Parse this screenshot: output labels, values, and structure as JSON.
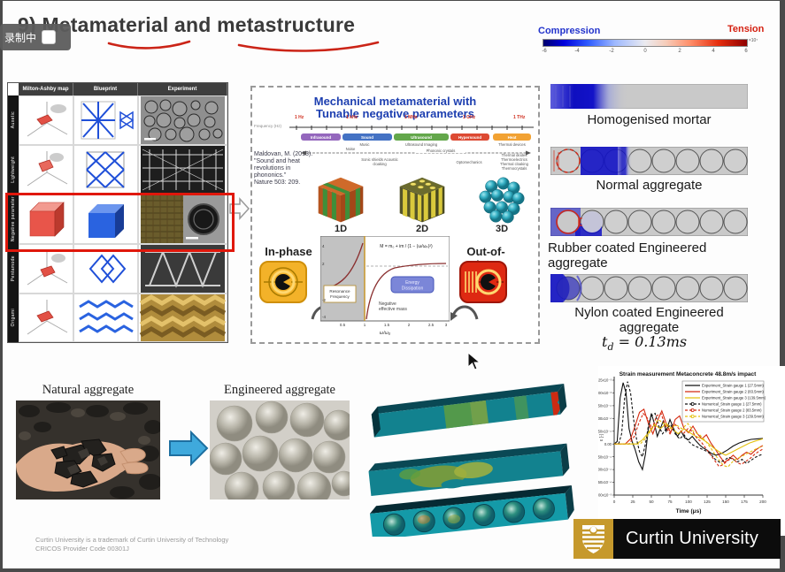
{
  "recording_label": "录制中",
  "title": "9) Metamaterial and metastructure",
  "left_table": {
    "columns": [
      "Milton-Ashby map",
      "Blueprint",
      "Experiment"
    ],
    "rows": [
      "Auxetic",
      "Lightweight",
      "Negative parameter",
      "Pentamode",
      "Origami"
    ],
    "highlighted_row": "Negative parameter"
  },
  "meta_panel": {
    "title1": "Mechanical metamaterial with",
    "title2": "Tunable negative parameters",
    "freq_axis_label": "Frequency (Hz)",
    "freq_markers": [
      "1 Hz",
      "1 kHz",
      "1 MHz",
      "1 GHz",
      "1 THz"
    ],
    "bands": [
      {
        "name": "Infrasound",
        "color": "#9467bd"
      },
      {
        "name": "Sound",
        "color": "#4472c4"
      },
      {
        "name": "Ultrasound",
        "color": "#63a74b"
      },
      {
        "name": "Hypersound",
        "color": "#dd4a33"
      },
      {
        "name": "Heat",
        "color": "#f2a233"
      }
    ],
    "band_notes": [
      "Noise",
      "Music",
      "Ultrasound Imaging",
      "Thermal devices"
    ],
    "app_notes": [
      "Phononic crystals",
      "Sonic shields Acoustic cloaking",
      "Optomechanics",
      "Thermal diodes Thermoelectrics Thermal cloaking Thermocrystals"
    ],
    "citation_lines": [
      "Maldovan, M. (2013).",
      "\"Sound and heat",
      "revolutions in phononics.\"",
      "Nature 503: 209."
    ],
    "dim_labels": [
      "1D",
      "2D",
      "3D"
    ],
    "in_phase": "In-phase",
    "out_phase": "Out-of-phase",
    "graph": {
      "equation": "M = m₀ + im / (1 − (ω/ωₚ)²)",
      "resonance1": "Resonance",
      "resonance2": "Frequency",
      "energy1": "Energy",
      "energy2": "Dissipation",
      "negative1": "Negative",
      "negative2": "effective mass",
      "xlabel": "ω/ω₀",
      "yticks": [
        "4",
        "2",
        "-2",
        "-4"
      ],
      "xticks": [
        "0.5",
        "1",
        "1.5",
        "2",
        "2.5",
        "3"
      ]
    }
  },
  "colorbar": {
    "left": "Compression",
    "right": "Tension",
    "ticks": [
      "-6",
      "-4",
      "-2",
      "0",
      "2",
      "4",
      "6"
    ],
    "exp": "×10⁷"
  },
  "simulations": [
    "Homogenised mortar",
    "Normal aggregate",
    "Rubber coated Engineered aggregate",
    "Nylon coated Engineered aggregate"
  ],
  "impact_time": {
    "t": "t",
    "sub": "d",
    "rest": " = 0.13ms"
  },
  "aggregates": {
    "natural": "Natural aggregate",
    "engineered": "Engineered aggregate"
  },
  "chart_data": {
    "type": "line",
    "title": "Strain measurement Metaconcrete 48.8m/s impact",
    "xlabel": "Time (μs)",
    "ylabel": "ε [-]",
    "xlim": [
      0,
      200
    ],
    "x_ticks": [
      0,
      25,
      50,
      75,
      100,
      125,
      150,
      175,
      200
    ],
    "y_tick_labels": [
      "1.25x10⁻³",
      "1.00x10⁻³",
      "7.50x10⁻⁴",
      "5.00x10⁻⁴",
      "2.50x10⁻⁴",
      "0.00",
      "-2.50x10⁻⁴",
      "-5.00x10⁻⁴",
      "-7.50x10⁻⁴",
      "-1.00x10⁻³"
    ],
    "ylim_e4": [
      -10,
      12.5
    ],
    "y_units": "strain ×10⁻⁴",
    "grid": false,
    "legend_position": "top-right",
    "series": [
      {
        "name": "Experiment_Strain gauge 1 (27.5mm)",
        "color": "#111111",
        "style": "solid",
        "points": [
          [
            0,
            0
          ],
          [
            4,
            0.5
          ],
          [
            8,
            9
          ],
          [
            12,
            12
          ],
          [
            16,
            10
          ],
          [
            20,
            3
          ],
          [
            24,
            0.5
          ],
          [
            28,
            -1
          ],
          [
            33,
            -3.5
          ],
          [
            38,
            -5
          ],
          [
            42,
            -2
          ],
          [
            46,
            3
          ],
          [
            50,
            6
          ],
          [
            54,
            4
          ],
          [
            58,
            1.5
          ],
          [
            62,
            3
          ],
          [
            66,
            4.5
          ],
          [
            70,
            2.5
          ],
          [
            75,
            4.8
          ],
          [
            80,
            3
          ],
          [
            85,
            1.5
          ],
          [
            90,
            2.5
          ],
          [
            95,
            1.2
          ],
          [
            100,
            0.8
          ],
          [
            105,
            1.5
          ],
          [
            110,
            0.6
          ],
          [
            115,
            -0.2
          ],
          [
            120,
            -0.8
          ],
          [
            125,
            -1.2
          ],
          [
            130,
            -1.8
          ],
          [
            137,
            -2.2
          ],
          [
            145,
            -1.8
          ],
          [
            152,
            -1.2
          ],
          [
            160,
            -0.4
          ],
          [
            168,
            0.2
          ],
          [
            176,
            0.6
          ],
          [
            184,
            0.9
          ],
          [
            192,
            1.0
          ],
          [
            200,
            1.1
          ]
        ]
      },
      {
        "name": "Experiment_Strain gauge 2 (83.5mm)",
        "color": "#d42a10",
        "style": "solid",
        "points": [
          [
            0,
            0
          ],
          [
            15,
            0
          ],
          [
            22,
            1
          ],
          [
            28,
            3.5
          ],
          [
            34,
            6.2
          ],
          [
            40,
            6.8
          ],
          [
            46,
            4
          ],
          [
            52,
            2
          ],
          [
            58,
            4.5
          ],
          [
            64,
            6.5
          ],
          [
            70,
            4
          ],
          [
            76,
            2.2
          ],
          [
            82,
            4.8
          ],
          [
            88,
            5.5
          ],
          [
            94,
            3
          ],
          [
            100,
            2.2
          ],
          [
            106,
            3.5
          ],
          [
            112,
            2
          ],
          [
            118,
            1
          ],
          [
            124,
            1.8
          ],
          [
            130,
            0.2
          ],
          [
            136,
            -1
          ],
          [
            142,
            -2.4
          ],
          [
            148,
            -3.6
          ],
          [
            154,
            -3
          ],
          [
            160,
            -2.2
          ],
          [
            166,
            -3
          ],
          [
            172,
            -2.2
          ],
          [
            178,
            -1.6
          ],
          [
            184,
            -2
          ],
          [
            190,
            -1.2
          ],
          [
            196,
            -0.6
          ],
          [
            200,
            -0.3
          ]
        ]
      },
      {
        "name": "Experiment_Strain gauge 3 (139.5mm)",
        "color": "#e3c110",
        "style": "solid",
        "points": [
          [
            0,
            0
          ],
          [
            30,
            0
          ],
          [
            38,
            0.8
          ],
          [
            46,
            2.2
          ],
          [
            54,
            3.8
          ],
          [
            62,
            3
          ],
          [
            70,
            4
          ],
          [
            78,
            3
          ],
          [
            86,
            2
          ],
          [
            94,
            3
          ],
          [
            102,
            2.2
          ],
          [
            110,
            1.5
          ],
          [
            118,
            1
          ],
          [
            126,
            0.2
          ],
          [
            134,
            -0.8
          ],
          [
            142,
            -1.6
          ],
          [
            150,
            -2.2
          ],
          [
            158,
            -1.6
          ],
          [
            166,
            -1
          ],
          [
            174,
            -0.4
          ],
          [
            182,
            0.2
          ],
          [
            190,
            0.6
          ],
          [
            200,
            1
          ]
        ]
      },
      {
        "name": "Numerical_Strain gauge 1 (27.5mm)",
        "color": "#111111",
        "style": "dashed",
        "points": [
          [
            0,
            0
          ],
          [
            6,
            0
          ],
          [
            10,
            2
          ],
          [
            14,
            9
          ],
          [
            18,
            12.2
          ],
          [
            22,
            10
          ],
          [
            26,
            5
          ],
          [
            30,
            1
          ],
          [
            34,
            -1.5
          ],
          [
            38,
            -2.5
          ],
          [
            42,
            0
          ],
          [
            46,
            3.5
          ],
          [
            50,
            5.5
          ],
          [
            55,
            6
          ],
          [
            60,
            3.5
          ],
          [
            65,
            2
          ],
          [
            70,
            3
          ],
          [
            76,
            3.8
          ],
          [
            82,
            2
          ],
          [
            88,
            1
          ],
          [
            94,
            1.8
          ],
          [
            100,
            0.5
          ],
          [
            106,
            -0.2
          ],
          [
            112,
            -0.6
          ],
          [
            118,
            -1
          ],
          [
            124,
            -1.4
          ],
          [
            130,
            -2
          ],
          [
            136,
            -3
          ],
          [
            142,
            -3.6
          ],
          [
            148,
            -3.2
          ],
          [
            154,
            -2.6
          ],
          [
            160,
            -3
          ],
          [
            166,
            -3.5
          ],
          [
            172,
            -3
          ],
          [
            178,
            -3.8
          ],
          [
            184,
            -3.2
          ],
          [
            190,
            -2.6
          ],
          [
            196,
            -2.2
          ],
          [
            200,
            -2
          ]
        ]
      },
      {
        "name": "Numerical_Strain gauge 2 (83.5mm)",
        "color": "#d42a10",
        "style": "dashed",
        "points": [
          [
            0,
            0
          ],
          [
            20,
            0
          ],
          [
            27,
            1.5
          ],
          [
            33,
            4
          ],
          [
            39,
            6
          ],
          [
            45,
            5
          ],
          [
            51,
            3
          ],
          [
            57,
            5.5
          ],
          [
            63,
            6
          ],
          [
            69,
            3.5
          ],
          [
            75,
            2
          ],
          [
            81,
            4
          ],
          [
            87,
            3
          ],
          [
            93,
            2
          ],
          [
            99,
            3
          ],
          [
            105,
            2.5
          ],
          [
            111,
            1.2
          ],
          [
            117,
            0.4
          ],
          [
            123,
            -0.8
          ],
          [
            129,
            -2
          ],
          [
            135,
            -3.2
          ],
          [
            141,
            -4.4
          ],
          [
            147,
            -4
          ],
          [
            153,
            -3.2
          ],
          [
            159,
            -2.8
          ],
          [
            165,
            -3.6
          ],
          [
            171,
            -4
          ],
          [
            177,
            -3.4
          ],
          [
            183,
            -2.8
          ],
          [
            189,
            -2
          ],
          [
            195,
            -1.4
          ],
          [
            200,
            -1
          ]
        ]
      },
      {
        "name": "Numerical_Strain gauge 3 (139.5mm)",
        "color": "#e3c110",
        "style": "dashed",
        "points": [
          [
            0,
            0
          ],
          [
            35,
            0
          ],
          [
            43,
            1.2
          ],
          [
            51,
            3
          ],
          [
            59,
            4.8
          ],
          [
            67,
            4
          ],
          [
            75,
            3
          ],
          [
            83,
            3.8
          ],
          [
            91,
            3
          ],
          [
            99,
            4
          ],
          [
            107,
            2.4
          ],
          [
            115,
            1.8
          ],
          [
            123,
            0.6
          ],
          [
            131,
            -1
          ],
          [
            139,
            -2.8
          ],
          [
            147,
            -4.2
          ],
          [
            153,
            -4.5
          ],
          [
            161,
            -3.2
          ],
          [
            169,
            -2.6
          ],
          [
            177,
            -2
          ],
          [
            185,
            -1.4
          ],
          [
            193,
            -0.8
          ],
          [
            200,
            -0.4
          ]
        ]
      }
    ]
  },
  "footer": [
    "Curtin University is a trademark of Curtin University of Technology",
    "CRICOS Provider Code 00301J"
  ],
  "logo_text": "Curtin University"
}
